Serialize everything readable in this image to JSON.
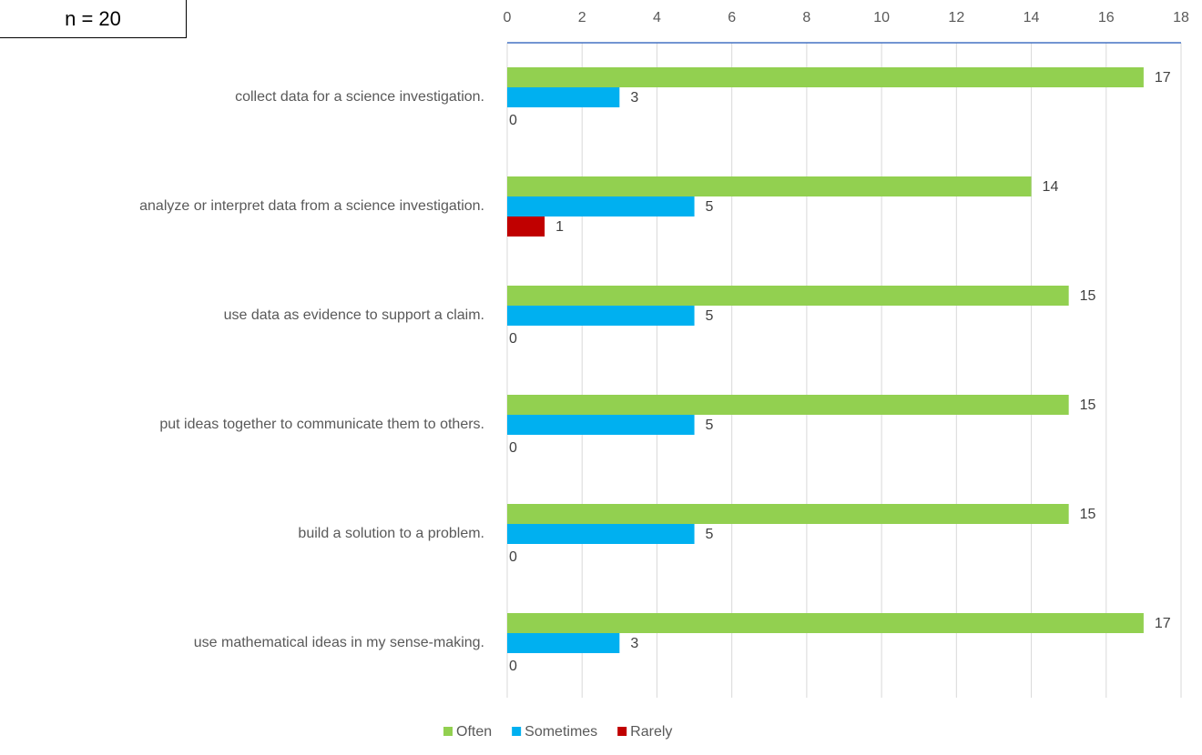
{
  "note": "n = 20",
  "chart_data": {
    "type": "bar",
    "orientation": "horizontal",
    "categories": [
      "collect data for a science investigation.",
      "analyze or interpret data from a science investigation.",
      "use data as evidence to support a claim.",
      "put ideas together to communicate them to others.",
      "build a solution to a problem.",
      "use mathematical ideas in my sense-making."
    ],
    "series": [
      {
        "name": "Often",
        "color": "#92D050",
        "values": [
          17,
          14,
          15,
          15,
          15,
          17
        ]
      },
      {
        "name": "Sometimes",
        "color": "#00B0F0",
        "values": [
          3,
          5,
          5,
          5,
          5,
          3
        ]
      },
      {
        "name": "Rarely",
        "color": "#C00000",
        "values": [
          0,
          1,
          0,
          0,
          0,
          0
        ]
      }
    ],
    "xlim": [
      0,
      18
    ],
    "xticks": [
      0,
      2,
      4,
      6,
      8,
      10,
      12,
      14,
      16,
      18
    ],
    "x_axis_position": "top",
    "grid": true,
    "legend": "bottom",
    "data_labels": true
  }
}
